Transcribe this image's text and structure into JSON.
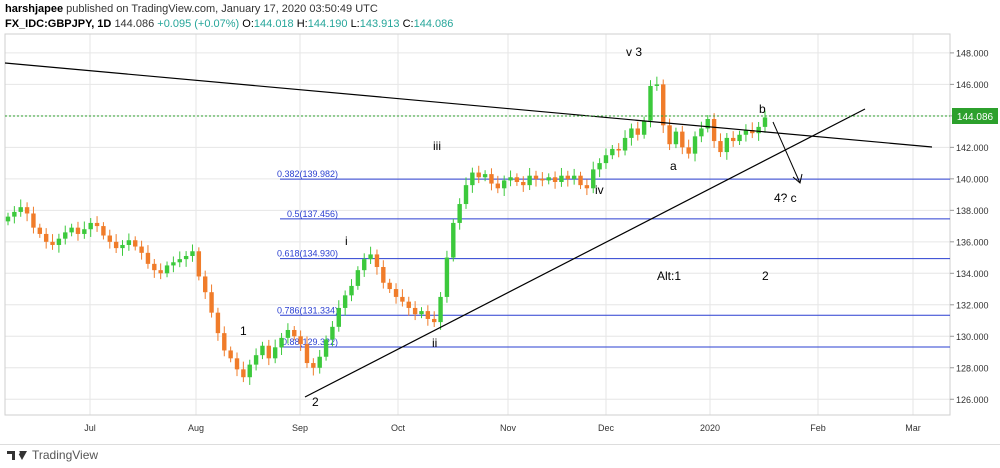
{
  "header": {
    "author": "harshjapee",
    "published_text": "published on TradingView.com, January 17, 2020 03:50:49 UTC",
    "symbol": "FX_IDC:GBPJPY, 1D",
    "last": "144.086",
    "change": "+0.095 (+0.07%)",
    "o_label": "O:",
    "o_val": "144.018",
    "h_label": "H:",
    "h_val": "144.190",
    "l_label": "L:",
    "l_val": "143.913",
    "c_label": "C:",
    "c_val": "144.086"
  },
  "footer": {
    "brand": "TradingView"
  },
  "colors": {
    "up": "#3cc93c",
    "down": "#f07c2a",
    "fib": "#2a3fd1",
    "trend": "#000000",
    "last_line": "#2ca02c",
    "grid": "#e6e6e6"
  },
  "chart_data": {
    "type": "candlestick",
    "title": "",
    "ylim": [
      125,
      149.2
    ],
    "y_ticks": [
      "126.000",
      "128.000",
      "130.000",
      "132.000",
      "134.000",
      "136.000",
      "138.000",
      "140.000",
      "142.000",
      "144.000",
      "146.000",
      "148.000"
    ],
    "x_ticks": [
      "Jul",
      "Aug",
      "Sep",
      "Oct",
      "Nov",
      "Dec",
      "2020",
      "Feb",
      "Mar"
    ],
    "last_price_label": "144.086",
    "last_price": 144.086,
    "series": [
      {
        "name": "FX_IDC:GBPJPY, 1D",
        "closes": [
          137.6,
          137.9,
          138.2,
          137.8,
          136.9,
          136.5,
          136.0,
          135.8,
          136.2,
          136.6,
          136.9,
          136.5,
          136.8,
          137.2,
          137.0,
          136.4,
          136.0,
          135.6,
          135.8,
          136.1,
          135.7,
          135.3,
          134.6,
          134.2,
          134.0,
          134.5,
          134.7,
          134.9,
          135.1,
          135.4,
          133.8,
          132.8,
          131.5,
          130.2,
          129.1,
          128.6,
          127.9,
          127.4,
          128.2,
          128.8,
          129.4,
          128.6,
          129.3,
          129.9,
          130.4,
          130.0,
          129.5,
          128.3,
          128.0,
          128.7,
          129.8,
          130.6,
          131.8,
          132.6,
          133.2,
          134.2,
          134.9,
          135.2,
          134.4,
          133.4,
          133.0,
          132.5,
          132.2,
          131.8,
          131.4,
          131.6,
          131.1,
          130.9,
          132.5,
          135.0,
          137.2,
          138.4,
          139.6,
          140.4,
          140.1,
          140.3,
          139.7,
          139.4,
          139.9,
          140.1,
          139.8,
          139.6,
          140.2,
          140.0,
          139.9,
          140.1,
          139.8,
          140.2,
          140.0,
          140.2,
          139.6,
          139.4,
          140.6,
          141.0,
          141.5,
          141.9,
          141.8,
          142.6,
          143.2,
          142.8,
          143.7,
          145.9,
          146.0,
          143.4,
          142.2,
          143.0,
          142.0,
          141.6,
          142.7,
          143.2,
          143.8,
          142.4,
          141.7,
          142.6,
          142.4,
          142.8,
          143.1,
          142.9,
          143.3,
          143.9
        ]
      }
    ],
    "fib_levels": [
      {
        "label": "0.382(139.982)",
        "value": 139.982
      },
      {
        "label": "0.5(137.456)",
        "value": 137.456
      },
      {
        "label": "0.618(134.930)",
        "value": 134.93
      },
      {
        "label": "0.786(131.334)",
        "value": 131.334
      },
      {
        "label": "0.88(129.322)",
        "value": 129.322
      }
    ],
    "annotations": [
      "v 3",
      "iii",
      "i",
      "ii",
      "iv",
      "1",
      "2",
      "a",
      "b",
      "4? c",
      "Alt:1",
      "2"
    ]
  }
}
